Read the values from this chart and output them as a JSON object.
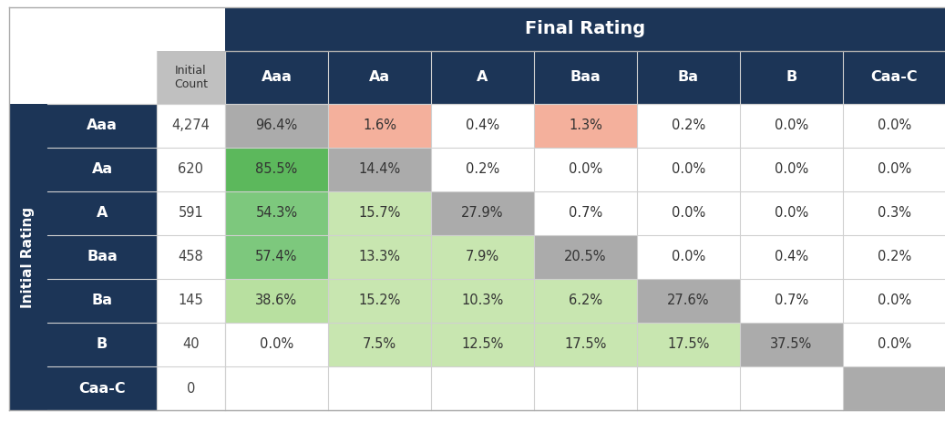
{
  "final_rating_header": "Final Rating",
  "col_headers": [
    "Aaa",
    "Aa",
    "A",
    "Baa",
    "Ba",
    "B",
    "Caa-C"
  ],
  "row_headers": [
    "Aaa",
    "Aa",
    "A",
    "Baa",
    "Ba",
    "B",
    "Caa-C"
  ],
  "initial_counts": [
    "4,274",
    "620",
    "591",
    "458",
    "145",
    "40",
    "0"
  ],
  "row_label": "Initial Rating",
  "table_data": [
    [
      "96.4%",
      "1.6%",
      "0.4%",
      "1.3%",
      "0.2%",
      "0.0%",
      "0.0%"
    ],
    [
      "85.5%",
      "14.4%",
      "0.2%",
      "0.0%",
      "0.0%",
      "0.0%",
      "0.0%"
    ],
    [
      "54.3%",
      "15.7%",
      "27.9%",
      "0.7%",
      "0.0%",
      "0.0%",
      "0.3%"
    ],
    [
      "57.4%",
      "13.3%",
      "7.9%",
      "20.5%",
      "0.0%",
      "0.4%",
      "0.2%"
    ],
    [
      "38.6%",
      "15.2%",
      "10.3%",
      "6.2%",
      "27.6%",
      "0.7%",
      "0.0%"
    ],
    [
      "0.0%",
      "7.5%",
      "12.5%",
      "17.5%",
      "17.5%",
      "37.5%",
      "0.0%"
    ],
    [
      "",
      "",
      "",
      "",
      "",
      "",
      ""
    ]
  ],
  "cell_colors": [
    [
      "#ababab",
      "#f4b09c",
      "#ffffff",
      "#f4b09c",
      "#ffffff",
      "#ffffff",
      "#ffffff"
    ],
    [
      "#5cb85c",
      "#ababab",
      "#ffffff",
      "#ffffff",
      "#ffffff",
      "#ffffff",
      "#ffffff"
    ],
    [
      "#7dc87d",
      "#c8e6b0",
      "#ababab",
      "#ffffff",
      "#ffffff",
      "#ffffff",
      "#ffffff"
    ],
    [
      "#7dc87d",
      "#c8e6b0",
      "#c8e6b0",
      "#ababab",
      "#ffffff",
      "#ffffff",
      "#ffffff"
    ],
    [
      "#b8e0a0",
      "#c8e6b0",
      "#c8e6b0",
      "#c8e6b0",
      "#ababab",
      "#ffffff",
      "#ffffff"
    ],
    [
      "#ffffff",
      "#c8e6b0",
      "#c8e6b0",
      "#c8e6b0",
      "#c8e6b0",
      "#ababab",
      "#ffffff"
    ],
    [
      "#ffffff",
      "#ffffff",
      "#ffffff",
      "#ffffff",
      "#ffffff",
      "#ffffff",
      "#ababab"
    ]
  ],
  "header_bg": "#1c3557",
  "header_text_color": "#ffffff",
  "row_header_bg": "#1c3557",
  "row_header_text_color": "#ffffff",
  "count_col_bg": "#c0c0c0",
  "count_col_text_color": "#333333",
  "cell_text_color": "#333333",
  "grid_color": "#d0d0d0",
  "background_color": "#ffffff",
  "initial_count_label": "Initial\nCount"
}
